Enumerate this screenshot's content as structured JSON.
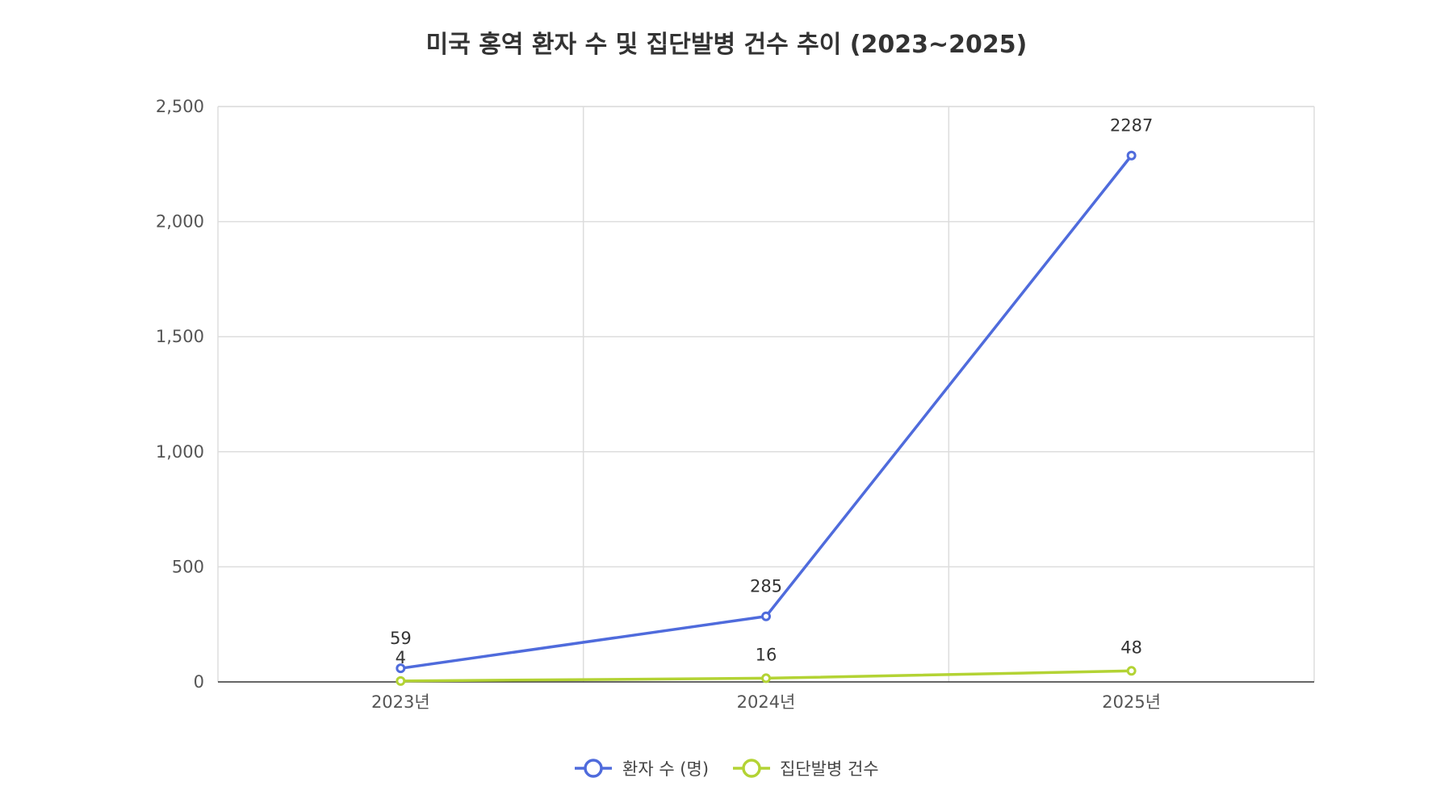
{
  "chart_data": {
    "type": "line",
    "title": "미국 홍역 환자 수 및 집단발병 건수 추이 (2023~2025)",
    "categories": [
      "2023년",
      "2024년",
      "2025년"
    ],
    "series": [
      {
        "name": "환자 수 (명)",
        "values": [
          59,
          285,
          2287
        ],
        "color": "#4f6bdc"
      },
      {
        "name": "집단발병 건수",
        "values": [
          4,
          16,
          48
        ],
        "color": "#b3d334"
      }
    ],
    "ylim": [
      0,
      2500
    ],
    "yticks": [
      0,
      500,
      1000,
      1500,
      2000,
      2500
    ],
    "ytick_labels": [
      "0",
      "500",
      "1,000",
      "1,500",
      "2,000",
      "2,500"
    ],
    "grid": true,
    "legend_position": "bottom-center",
    "data_labels": true
  }
}
